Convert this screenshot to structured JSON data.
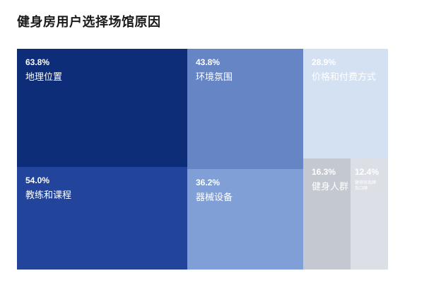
{
  "chart_data": {
    "type": "treemap",
    "title": "健身房用户选择场馆原因",
    "cells": [
      {
        "label": "地理位置",
        "value": 63.8,
        "value_label": "63.8%",
        "color": "#0e2d78",
        "text_color": "#ffffff"
      },
      {
        "label": "教练和课程",
        "value": 54.0,
        "value_label": "54.0%",
        "color": "#23449b",
        "text_color": "#ffffff"
      },
      {
        "label": "环境氛围",
        "value": 43.8,
        "value_label": "43.8%",
        "color": "#6585c5",
        "text_color": "#ffffff"
      },
      {
        "label": "器械设备",
        "value": 36.2,
        "value_label": "36.2%",
        "color": "#7f9fd6",
        "text_color": "#ffffff"
      },
      {
        "label": "价格和付费方式",
        "value": 28.9,
        "value_label": "28.9%",
        "color": "#d4e1f3",
        "text_color": "#ffffff"
      },
      {
        "label": "健身人群",
        "value": 16.3,
        "value_label": "16.3%",
        "color": "#c4c8d0",
        "text_color": "#ffffff"
      },
      {
        "label": "健身房品牌及口碑",
        "value": 12.4,
        "value_label": "12.4%",
        "color": "#dcdfe6",
        "text_color": "#ffffff"
      }
    ]
  }
}
